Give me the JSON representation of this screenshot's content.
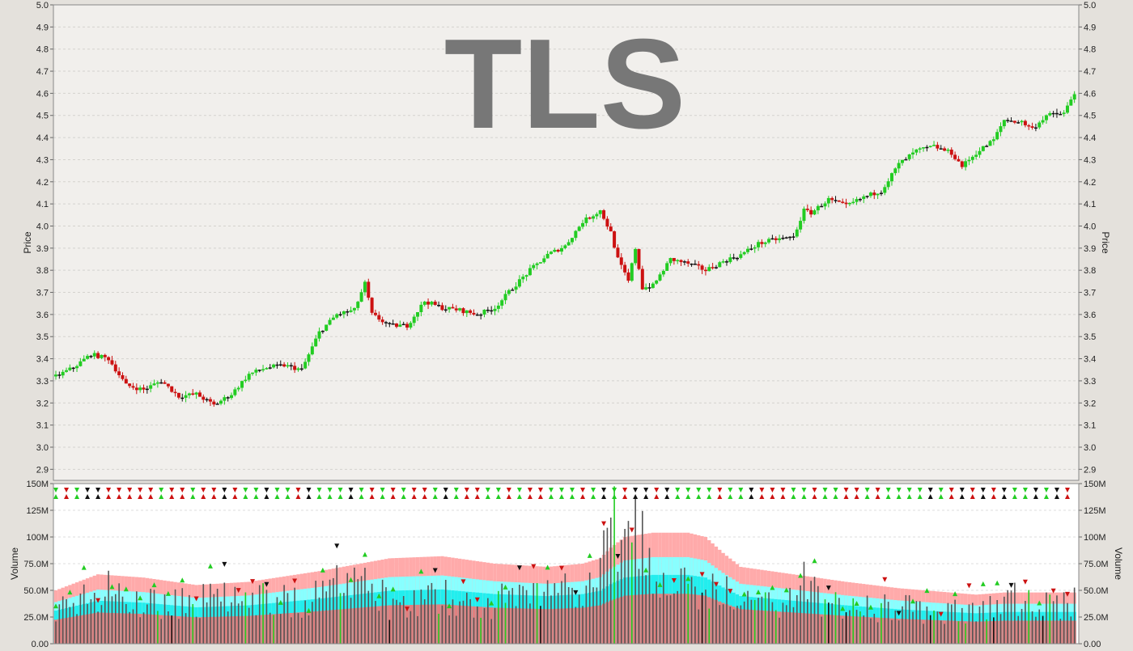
{
  "colors": {
    "up": "#22cc22",
    "down": "#cc1111",
    "neutral": "#111111",
    "band_outer": "#ffaaaa",
    "band_mid": "#88ffff",
    "band_inner": "#22eeee",
    "volume_bar": "#555555",
    "volume_base": "#e08080",
    "watermark": "#777777",
    "plot_bg": "#f1efec",
    "volume_bg": "#ffffff"
  },
  "chart_data": [
    {
      "type": "candlestick",
      "title": "TLS",
      "ylabel": "Price",
      "ylim": [
        2.85,
        5.0
      ],
      "yticks": [
        "2.9",
        "3.0",
        "3.1",
        "3.2",
        "3.3",
        "3.4",
        "3.5",
        "3.6",
        "3.7",
        "3.8",
        "3.9",
        "4.0",
        "4.1",
        "4.2",
        "4.3",
        "4.4",
        "4.5",
        "4.6",
        "4.7",
        "4.8",
        "4.9",
        "5.0"
      ],
      "grid": true,
      "close_keypoints": [
        [
          0,
          3.32
        ],
        [
          5,
          3.36
        ],
        [
          10,
          3.42
        ],
        [
          15,
          3.4
        ],
        [
          20,
          3.28
        ],
        [
          25,
          3.26
        ],
        [
          30,
          3.3
        ],
        [
          35,
          3.23
        ],
        [
          40,
          3.24
        ],
        [
          45,
          3.19
        ],
        [
          50,
          3.24
        ],
        [
          55,
          3.33
        ],
        [
          60,
          3.36
        ],
        [
          65,
          3.37
        ],
        [
          70,
          3.35
        ],
        [
          75,
          3.52
        ],
        [
          80,
          3.6
        ],
        [
          85,
          3.62
        ],
        [
          88,
          3.74
        ],
        [
          90,
          3.6
        ],
        [
          95,
          3.55
        ],
        [
          100,
          3.55
        ],
        [
          105,
          3.66
        ],
        [
          110,
          3.63
        ],
        [
          115,
          3.62
        ],
        [
          120,
          3.6
        ],
        [
          125,
          3.63
        ],
        [
          130,
          3.72
        ],
        [
          135,
          3.8
        ],
        [
          140,
          3.87
        ],
        [
          145,
          3.91
        ],
        [
          150,
          4.02
        ],
        [
          155,
          4.07
        ],
        [
          158,
          3.97
        ],
        [
          160,
          3.85
        ],
        [
          163,
          3.75
        ],
        [
          165,
          3.9
        ],
        [
          167,
          3.72
        ],
        [
          170,
          3.73
        ],
        [
          175,
          3.85
        ],
        [
          180,
          3.83
        ],
        [
          185,
          3.8
        ],
        [
          190,
          3.84
        ],
        [
          195,
          3.87
        ],
        [
          200,
          3.92
        ],
        [
          205,
          3.94
        ],
        [
          210,
          3.95
        ],
        [
          213,
          4.07
        ],
        [
          215,
          4.06
        ],
        [
          220,
          4.12
        ],
        [
          225,
          4.09
        ],
        [
          230,
          4.13
        ],
        [
          235,
          4.16
        ],
        [
          240,
          4.28
        ],
        [
          245,
          4.34
        ],
        [
          250,
          4.36
        ],
        [
          255,
          4.33
        ],
        [
          258,
          4.27
        ],
        [
          262,
          4.33
        ],
        [
          267,
          4.39
        ],
        [
          270,
          4.48
        ],
        [
          275,
          4.47
        ],
        [
          278,
          4.44
        ],
        [
          282,
          4.5
        ],
        [
          287,
          4.51
        ],
        [
          290,
          4.6
        ]
      ]
    },
    {
      "type": "bar",
      "ylabel": "Volume",
      "ylim": [
        0,
        150000000
      ],
      "yticks": [
        "0.00",
        "25.0M",
        "50.0M",
        "75.0M",
        "100M",
        "125M",
        "150M"
      ],
      "grid": true,
      "volume_keypoints": [
        [
          0,
          38
        ],
        [
          8,
          45
        ],
        [
          15,
          55
        ],
        [
          20,
          40
        ],
        [
          30,
          42
        ],
        [
          40,
          40
        ],
        [
          45,
          48
        ],
        [
          50,
          42
        ],
        [
          60,
          45
        ],
        [
          70,
          40
        ],
        [
          78,
          55
        ],
        [
          85,
          62
        ],
        [
          90,
          70
        ],
        [
          95,
          35
        ],
        [
          100,
          42
        ],
        [
          110,
          48
        ],
        [
          120,
          40
        ],
        [
          130,
          45
        ],
        [
          140,
          50
        ],
        [
          150,
          55
        ],
        [
          155,
          80
        ],
        [
          158,
          120
        ],
        [
          162,
          95
        ],
        [
          165,
          135
        ],
        [
          170,
          60
        ],
        [
          180,
          55
        ],
        [
          185,
          45
        ],
        [
          190,
          60
        ],
        [
          195,
          40
        ],
        [
          200,
          45
        ],
        [
          205,
          35
        ],
        [
          210,
          50
        ],
        [
          213,
          60
        ],
        [
          220,
          40
        ],
        [
          230,
          35
        ],
        [
          240,
          38
        ],
        [
          250,
          32
        ],
        [
          262,
          35
        ],
        [
          270,
          50
        ],
        [
          280,
          38
        ],
        [
          290,
          42
        ]
      ],
      "band_keypoints": [
        [
          0,
          50
        ],
        [
          12,
          65
        ],
        [
          25,
          62
        ],
        [
          40,
          55
        ],
        [
          55,
          58
        ],
        [
          75,
          68
        ],
        [
          95,
          80
        ],
        [
          110,
          82
        ],
        [
          125,
          75
        ],
        [
          140,
          72
        ],
        [
          150,
          75
        ],
        [
          155,
          80
        ],
        [
          158,
          90
        ],
        [
          162,
          100
        ],
        [
          170,
          104
        ],
        [
          180,
          104
        ],
        [
          185,
          100
        ],
        [
          190,
          85
        ],
        [
          195,
          72
        ],
        [
          210,
          65
        ],
        [
          225,
          58
        ],
        [
          240,
          52
        ],
        [
          262,
          46
        ],
        [
          270,
          48
        ],
        [
          290,
          48
        ]
      ]
    }
  ]
}
